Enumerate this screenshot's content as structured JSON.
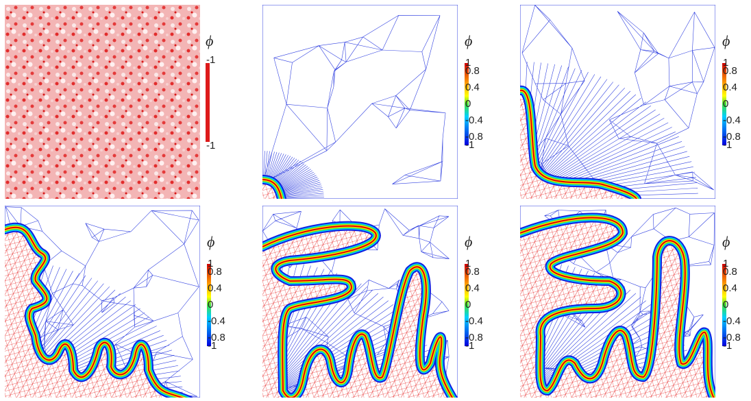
{
  "panels": [
    {
      "colorbar": {
        "symbol": "ϕ",
        "ticks": [
          "-1",
          "-1"
        ]
      }
    },
    {
      "colorbar": {
        "symbol": "ϕ",
        "ticks": [
          "1",
          "0.8",
          "0.4",
          "0",
          "-0.4",
          "-0.8",
          "-1"
        ]
      }
    },
    {
      "colorbar": {
        "symbol": "ϕ",
        "ticks": [
          "1",
          "0.8",
          "0.4",
          "0",
          "-0.4",
          "-0.8",
          "-1"
        ]
      }
    },
    {
      "colorbar": {
        "symbol": "ϕ",
        "ticks": [
          "1",
          "0.8",
          "0.4",
          "0",
          "-0.4",
          "-0.8",
          "-1"
        ]
      }
    },
    {
      "colorbar": {
        "symbol": "ϕ",
        "ticks": [
          "1",
          "0.8",
          "0.4",
          "0",
          "-0.4",
          "-0.8",
          "-1"
        ]
      }
    },
    {
      "colorbar": {
        "symbol": "ϕ",
        "ticks": [
          "1",
          "0.8",
          "0.4",
          "0",
          "-0.4",
          "-0.8",
          "-1"
        ]
      }
    }
  ]
}
